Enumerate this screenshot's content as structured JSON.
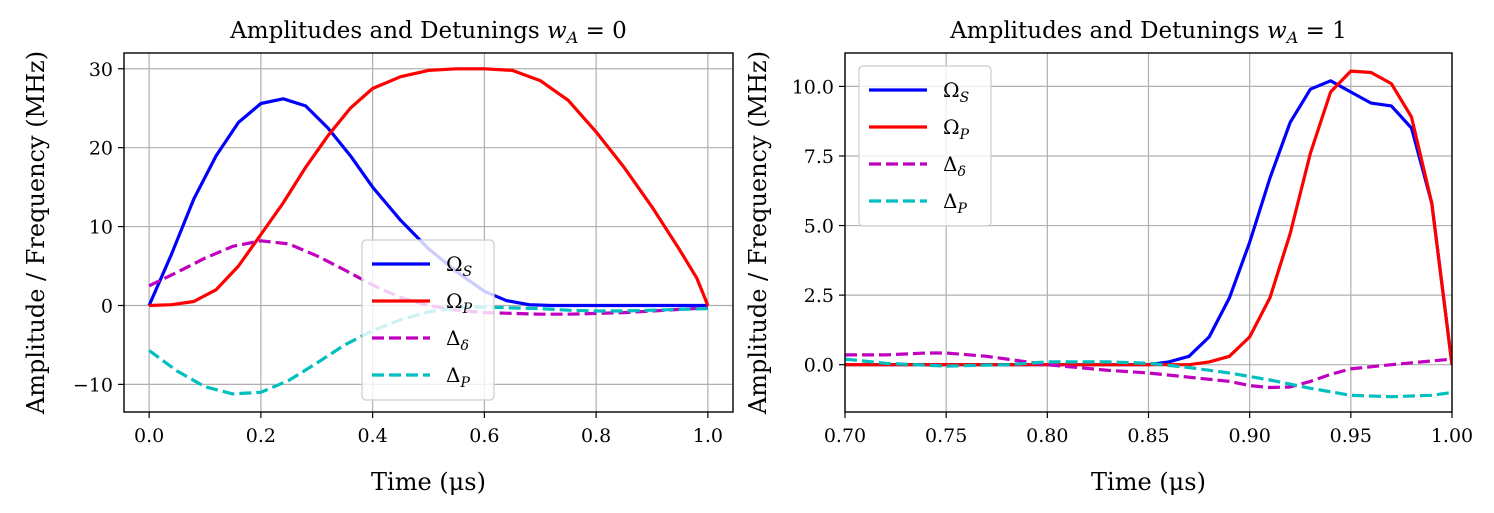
{
  "figure": {
    "shared_xlabel": "Time (μs)",
    "shared_ylabel": "Amplitude / Frequency (MHz)"
  },
  "chart_data": [
    {
      "type": "line",
      "title": "Amplitudes and Detunings w_A = 0",
      "title_text": "Amplitudes and Detunings ",
      "title_var": "w",
      "title_sub": "A",
      "title_eq": " = 0",
      "xlabel": "Time (μs)",
      "ylabel": "Amplitude / Frequency (MHz)",
      "xlim": [
        -0.045,
        1.045
      ],
      "ylim": [
        -13.5,
        32
      ],
      "xticks": [
        0.0,
        0.2,
        0.4,
        0.6,
        0.8,
        1.0
      ],
      "xtick_labels": [
        "0.0",
        "0.2",
        "0.4",
        "0.6",
        "0.8",
        "1.0"
      ],
      "yticks": [
        -10,
        0,
        10,
        20,
        30
      ],
      "ytick_labels": [
        "−10",
        "0",
        "10",
        "20",
        "30"
      ],
      "grid": true,
      "legend_position": "lower-center",
      "series": [
        {
          "name": "Ω_S",
          "symbol": "Ω",
          "sub": "S",
          "color": "#0000ff",
          "dash": "solid",
          "x": [
            0.0,
            0.04,
            0.08,
            0.12,
            0.16,
            0.2,
            0.24,
            0.28,
            0.32,
            0.36,
            0.4,
            0.45,
            0.5,
            0.55,
            0.6,
            0.64,
            0.68,
            0.72,
            0.8,
            0.9,
            1.0
          ],
          "y": [
            0.0,
            6.5,
            13.5,
            19.0,
            23.2,
            25.6,
            26.2,
            25.3,
            22.5,
            19.0,
            15.0,
            10.8,
            7.2,
            4.3,
            1.8,
            0.6,
            0.1,
            0.0,
            0.0,
            0.0,
            0.0
          ]
        },
        {
          "name": "Ω_P",
          "symbol": "Ω",
          "sub": "P",
          "color": "#ff0000",
          "dash": "solid",
          "x": [
            0.0,
            0.04,
            0.08,
            0.12,
            0.16,
            0.2,
            0.24,
            0.28,
            0.32,
            0.36,
            0.4,
            0.45,
            0.5,
            0.55,
            0.6,
            0.65,
            0.7,
            0.75,
            0.8,
            0.85,
            0.9,
            0.95,
            0.98,
            1.0
          ],
          "y": [
            0.0,
            0.1,
            0.5,
            2.0,
            5.0,
            9.0,
            13.0,
            17.5,
            21.5,
            25.0,
            27.5,
            29.0,
            29.8,
            30.0,
            30.0,
            29.8,
            28.5,
            26.0,
            22.0,
            17.5,
            12.5,
            7.0,
            3.5,
            0.0
          ]
        },
        {
          "name": "Δ_δ",
          "symbol": "Δ",
          "sub": "δ",
          "color": "#bf00bf",
          "dash": "dashed",
          "x": [
            0.0,
            0.05,
            0.1,
            0.15,
            0.2,
            0.25,
            0.3,
            0.35,
            0.4,
            0.45,
            0.5,
            0.55,
            0.6,
            0.65,
            0.7,
            0.75,
            0.8,
            0.85,
            0.9,
            0.95,
            1.0
          ],
          "y": [
            2.5,
            4.2,
            6.0,
            7.5,
            8.2,
            7.8,
            6.3,
            4.5,
            2.6,
            1.0,
            0.0,
            -0.6,
            -0.9,
            -1.0,
            -1.1,
            -1.1,
            -1.0,
            -0.9,
            -0.7,
            -0.5,
            -0.3
          ]
        },
        {
          "name": "Δ_P",
          "symbol": "Δ",
          "sub": "P",
          "color": "#00bfbf",
          "dash": "dashed",
          "x": [
            0.0,
            0.05,
            0.1,
            0.15,
            0.2,
            0.25,
            0.3,
            0.35,
            0.4,
            0.45,
            0.5,
            0.55,
            0.6,
            0.65,
            0.7,
            0.75,
            0.8,
            0.85,
            0.9,
            0.95,
            1.0
          ],
          "y": [
            -5.7,
            -8.3,
            -10.3,
            -11.2,
            -11.0,
            -9.5,
            -7.3,
            -5.0,
            -3.2,
            -1.8,
            -0.8,
            -0.3,
            -0.2,
            -0.3,
            -0.4,
            -0.6,
            -0.7,
            -0.7,
            -0.6,
            -0.5,
            -0.4
          ]
        }
      ]
    },
    {
      "type": "line",
      "title": "Amplitudes and Detunings w_A = 1",
      "title_text": "Amplitudes and Detunings ",
      "title_var": "w",
      "title_sub": "A",
      "title_eq": " = 1",
      "xlabel": "Time (μs)",
      "ylabel": "Amplitude / Frequency (MHz)",
      "xlim": [
        0.7,
        1.0
      ],
      "ylim": [
        -1.7,
        11.2
      ],
      "xticks": [
        0.7,
        0.75,
        0.8,
        0.85,
        0.9,
        0.95,
        1.0
      ],
      "xtick_labels": [
        "0.70",
        "0.75",
        "0.80",
        "0.85",
        "0.90",
        "0.95",
        "1.00"
      ],
      "yticks": [
        0.0,
        2.5,
        5.0,
        7.5,
        10.0
      ],
      "ytick_labels": [
        "0.0",
        "2.5",
        "5.0",
        "7.5",
        "10.0"
      ],
      "grid": true,
      "legend_position": "upper-left",
      "series": [
        {
          "name": "Ω_S",
          "symbol": "Ω",
          "sub": "S",
          "color": "#0000ff",
          "dash": "solid",
          "x": [
            0.7,
            0.75,
            0.8,
            0.85,
            0.86,
            0.87,
            0.88,
            0.89,
            0.9,
            0.91,
            0.92,
            0.93,
            0.94,
            0.95,
            0.96,
            0.97,
            0.98,
            0.99,
            1.0
          ],
          "y": [
            0.0,
            0.0,
            0.0,
            0.0,
            0.1,
            0.3,
            1.0,
            2.4,
            4.4,
            6.7,
            8.7,
            9.9,
            10.2,
            9.8,
            9.4,
            9.3,
            8.5,
            5.8,
            0.0
          ]
        },
        {
          "name": "Ω_P",
          "symbol": "Ω",
          "sub": "P",
          "color": "#ff0000",
          "dash": "solid",
          "x": [
            0.7,
            0.75,
            0.8,
            0.85,
            0.87,
            0.88,
            0.89,
            0.9,
            0.91,
            0.92,
            0.93,
            0.94,
            0.95,
            0.96,
            0.97,
            0.98,
            0.99,
            1.0
          ],
          "y": [
            0.0,
            0.0,
            0.0,
            0.0,
            0.0,
            0.1,
            0.3,
            1.0,
            2.4,
            4.7,
            7.6,
            9.8,
            10.55,
            10.5,
            10.1,
            8.9,
            5.8,
            0.0
          ]
        },
        {
          "name": "Δ_δ",
          "symbol": "Δ",
          "sub": "δ",
          "color": "#bf00bf",
          "dash": "dashed",
          "x": [
            0.7,
            0.72,
            0.74,
            0.75,
            0.77,
            0.8,
            0.83,
            0.85,
            0.87,
            0.89,
            0.9,
            0.91,
            0.92,
            0.93,
            0.94,
            0.95,
            0.97,
            1.0
          ],
          "y": [
            0.35,
            0.35,
            0.42,
            0.42,
            0.3,
            0.0,
            -0.2,
            -0.3,
            -0.45,
            -0.6,
            -0.75,
            -0.82,
            -0.8,
            -0.6,
            -0.35,
            -0.15,
            0.0,
            0.2
          ]
        },
        {
          "name": "Δ_P",
          "symbol": "Δ",
          "sub": "P",
          "color": "#00bfbf",
          "dash": "dashed",
          "x": [
            0.7,
            0.72,
            0.75,
            0.78,
            0.8,
            0.83,
            0.85,
            0.87,
            0.89,
            0.91,
            0.93,
            0.95,
            0.97,
            0.99,
            1.0
          ],
          "y": [
            0.2,
            0.05,
            -0.05,
            0.0,
            0.1,
            0.1,
            0.05,
            -0.1,
            -0.3,
            -0.55,
            -0.85,
            -1.1,
            -1.15,
            -1.1,
            -1.0
          ]
        }
      ]
    }
  ]
}
